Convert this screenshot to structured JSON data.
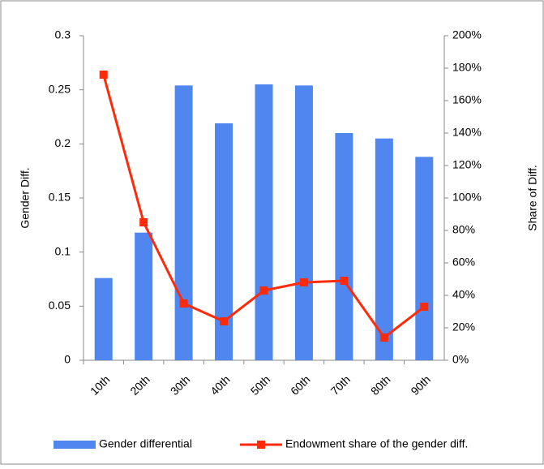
{
  "chart_data": {
    "type": "bar-line",
    "y_label": "Gender Diff.",
    "y2_label": "Share of Diff.",
    "categories": [
      "10th",
      "20th",
      "30th",
      "40th",
      "50th",
      "60th",
      "70th",
      "80th",
      "90th"
    ],
    "series": [
      {
        "name": "Gender differential",
        "type": "bar",
        "color": "#4f86f0",
        "values": [
          0.076,
          0.118,
          0.254,
          0.219,
          0.255,
          0.254,
          0.21,
          0.205,
          0.188
        ]
      },
      {
        "name": "Endowment share of the gender diff.",
        "type": "line",
        "axis": "y2",
        "color": "#ff2a0a",
        "values": [
          176,
          85,
          35,
          24,
          43,
          48,
          49,
          14,
          33
        ]
      }
    ],
    "ylim": [
      0,
      0.3
    ],
    "yticks": [
      0,
      0.05,
      0.1,
      0.15,
      0.2,
      0.25,
      0.3
    ],
    "y2lim": [
      0,
      200
    ],
    "y2ticks": [
      {
        "value": 0,
        "label": "0%"
      },
      {
        "value": 20,
        "label": "20%"
      },
      {
        "value": 40,
        "label": "40%"
      },
      {
        "value": 60,
        "label": "60%"
      },
      {
        "value": 80,
        "label": "80%"
      },
      {
        "value": 100,
        "label": "100%"
      },
      {
        "value": 120,
        "label": "120%"
      },
      {
        "value": 140,
        "label": "140%"
      },
      {
        "value": 160,
        "label": "160%"
      },
      {
        "value": 180,
        "label": "180%"
      },
      {
        "value": 200,
        "label": "200%"
      }
    ]
  }
}
